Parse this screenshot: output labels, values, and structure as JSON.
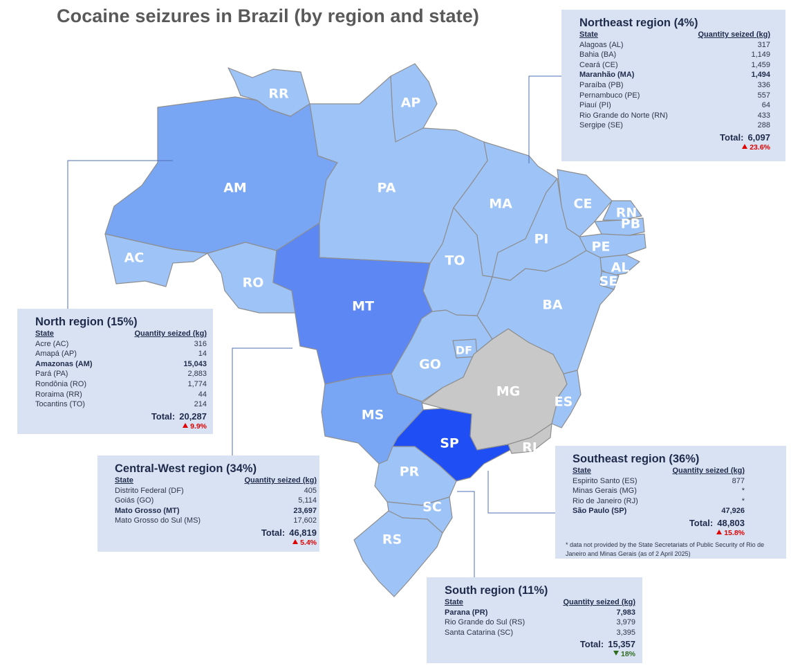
{
  "title": "Cocaine seizures in Brazil (by region and state)",
  "colors": {
    "very_light": "#9dc3f7",
    "light": "#78a6f5",
    "medium": "#5d87f2",
    "dark": "#1f4ef5",
    "no_data": "#c8c8c8",
    "panel_bg": "#d9e2f3"
  },
  "map_labels": {
    "RR": "RR",
    "AP": "AP",
    "AM": "AM",
    "PA": "PA",
    "MA": "MA",
    "CE": "CE",
    "RN": "RN",
    "PB": "PB",
    "PI": "PI",
    "PE": "PE",
    "AC": "AC",
    "TO": "TO",
    "AL": "AL",
    "SE": "SE",
    "RO": "RO",
    "MT": "MT",
    "BA": "BA",
    "DF": "DF",
    "GO": "GO",
    "MG": "MG",
    "ES": "ES",
    "MS": "MS",
    "SP": "SP",
    "RJ": "RJ",
    "PR": "PR",
    "SC": "SC",
    "RS": "RS"
  },
  "column_headers": {
    "state": "State",
    "quantity": "Quantity seized (kg)"
  },
  "regions": {
    "northeast": {
      "title": "Northeast region (4%)",
      "rows": [
        {
          "state": "Alagoas (AL)",
          "value": "317"
        },
        {
          "state": "Bahia (BA)",
          "value": "1,149"
        },
        {
          "state": "Ceará (CE)",
          "value": "1,459"
        },
        {
          "state": "Maranhão (MA)",
          "value": "1,494"
        },
        {
          "state": "Paraíba (PB)",
          "value": "336"
        },
        {
          "state": "Pernambuco (PE)",
          "value": "557"
        },
        {
          "state": "Piauí (PI)",
          "value": "64"
        },
        {
          "state": "Rio Grande do Norte (RN)",
          "value": "433"
        },
        {
          "state": "Sergipe (SE)",
          "value": "288"
        }
      ],
      "total_label": "Total:",
      "total": "6,097",
      "change": "23.6%",
      "direction": "up"
    },
    "north": {
      "title": "North region (15%)",
      "rows": [
        {
          "state": "Acre (AC)",
          "value": "316"
        },
        {
          "state": "Amapá (AP)",
          "value": "14"
        },
        {
          "state": "Amazonas (AM)",
          "value": "15,043"
        },
        {
          "state": "Pará (PA)",
          "value": "2,883"
        },
        {
          "state": "Rondônia (RO)",
          "value": "1,774"
        },
        {
          "state": "Roraima (RR)",
          "value": "44"
        },
        {
          "state": "Tocantins (TO)",
          "value": "214"
        }
      ],
      "total_label": "Total:",
      "total": "20,287",
      "change": "9.9%",
      "direction": "up"
    },
    "central_west": {
      "title": "Central-West region (34%)",
      "rows": [
        {
          "state": "Distrito Federal (DF)",
          "value": "405"
        },
        {
          "state": "Goiás (GO)",
          "value": "5,114"
        },
        {
          "state": "Mato Grosso (MT)",
          "value": "23,697"
        },
        {
          "state": "Mato Grosso do Sul (MS)",
          "value": "17,602"
        }
      ],
      "total_label": "Total:",
      "total": "46,819",
      "change": "5.4%",
      "direction": "up"
    },
    "southeast": {
      "title": "Southeast region (36%)",
      "rows": [
        {
          "state": "Espirito Santo (ES)",
          "value": "877"
        },
        {
          "state": "Minas Gerais (MG)",
          "value": "*"
        },
        {
          "state": "Rio de Janeiro (RJ)",
          "value": "*"
        },
        {
          "state": "São Paulo (SP)",
          "value": "47,926"
        }
      ],
      "total_label": "Total:",
      "total": "48,803",
      "change": "15.8%",
      "direction": "up",
      "note": "* data not provided by the State Secretariats of Public Security of Rio de Janeiro and Minas Gerais (as of 2 April 2025)"
    },
    "south": {
      "title": "South region (11%)",
      "rows": [
        {
          "state": "Parana (PR)",
          "value": "7,983"
        },
        {
          "state": "Rio Grande do Sul (RS)",
          "value": "3,979"
        },
        {
          "state": "Santa Catarina (SC)",
          "value": "3,395"
        }
      ],
      "total_label": "Total:",
      "total": "15,357",
      "change": "18%",
      "direction": "down"
    }
  }
}
